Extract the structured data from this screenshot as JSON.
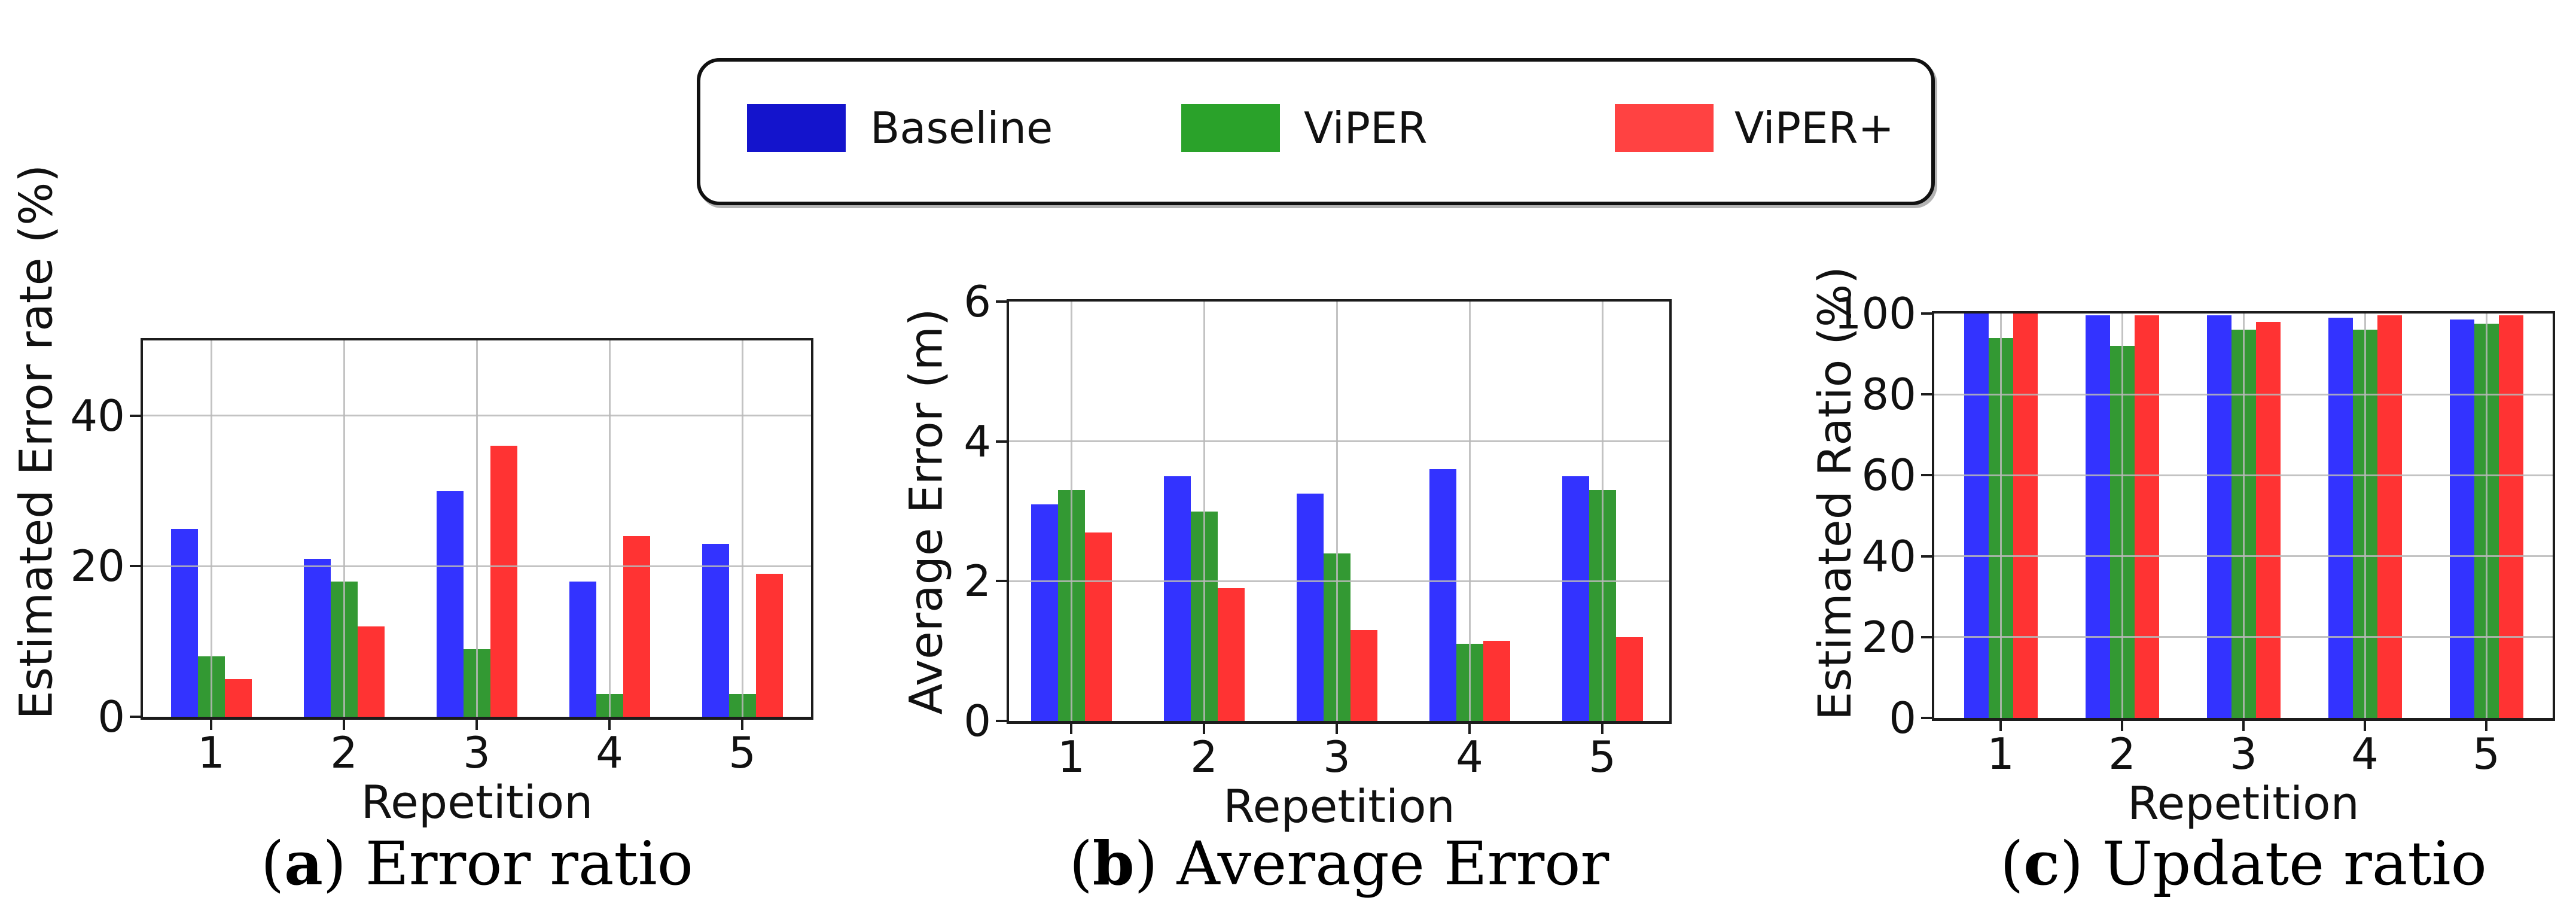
{
  "legend": {
    "items": [
      {
        "label": "Baseline",
        "swatch_color": "#1414cc"
      },
      {
        "label": "ViPER",
        "swatch_color": "#2aa22a"
      },
      {
        "label": "ViPER+",
        "swatch_color": "#ff4242"
      }
    ]
  },
  "chart_data": [
    {
      "type": "bar",
      "panel": "a",
      "caption_letter": "a",
      "caption_text": "Error ratio",
      "xlabel": "Repetition",
      "ylabel": "Estimated Error rate (%)",
      "categories": [
        "1",
        "2",
        "3",
        "4",
        "5"
      ],
      "ylim": [
        0,
        50
      ],
      "yticks": [
        0,
        20,
        40
      ],
      "grid": true,
      "series": [
        {
          "name": "Baseline",
          "color": "#3333ff",
          "values": [
            25,
            21,
            30,
            18,
            23
          ]
        },
        {
          "name": "ViPER",
          "color": "#339933",
          "values": [
            8,
            18,
            9,
            3,
            3
          ]
        },
        {
          "name": "ViPER+",
          "color": "#ff3333",
          "values": [
            5,
            12,
            36,
            24,
            19
          ]
        }
      ]
    },
    {
      "type": "bar",
      "panel": "b",
      "caption_letter": "b",
      "caption_text": "Average Error",
      "xlabel": "Repetition",
      "ylabel": "Average Error (m)",
      "categories": [
        "1",
        "2",
        "3",
        "4",
        "5"
      ],
      "ylim": [
        0,
        6
      ],
      "yticks": [
        0,
        2,
        4,
        6
      ],
      "grid": true,
      "series": [
        {
          "name": "Baseline",
          "color": "#3333ff",
          "values": [
            3.1,
            3.5,
            3.25,
            3.6,
            3.5
          ]
        },
        {
          "name": "ViPER",
          "color": "#339933",
          "values": [
            3.3,
            3.0,
            2.4,
            1.1,
            3.3
          ]
        },
        {
          "name": "ViPER+",
          "color": "#ff3333",
          "values": [
            2.7,
            1.9,
            1.3,
            1.15,
            1.2
          ]
        }
      ]
    },
    {
      "type": "bar",
      "panel": "c",
      "caption_letter": "c",
      "caption_text": "Update ratio",
      "xlabel": "Repetition",
      "ylabel": "Estimated Ratio (%)",
      "categories": [
        "1",
        "2",
        "3",
        "4",
        "5"
      ],
      "ylim": [
        0,
        100
      ],
      "yticks": [
        0,
        20,
        40,
        60,
        80,
        100
      ],
      "grid": true,
      "series": [
        {
          "name": "Baseline",
          "color": "#3333ff",
          "values": [
            100,
            99.5,
            99.5,
            99,
            98.5
          ]
        },
        {
          "name": "ViPER",
          "color": "#339933",
          "values": [
            94,
            92,
            96,
            96,
            97.5
          ]
        },
        {
          "name": "ViPER+",
          "color": "#ff3333",
          "values": [
            100,
            99.5,
            98,
            99.5,
            99.5
          ]
        }
      ]
    }
  ]
}
